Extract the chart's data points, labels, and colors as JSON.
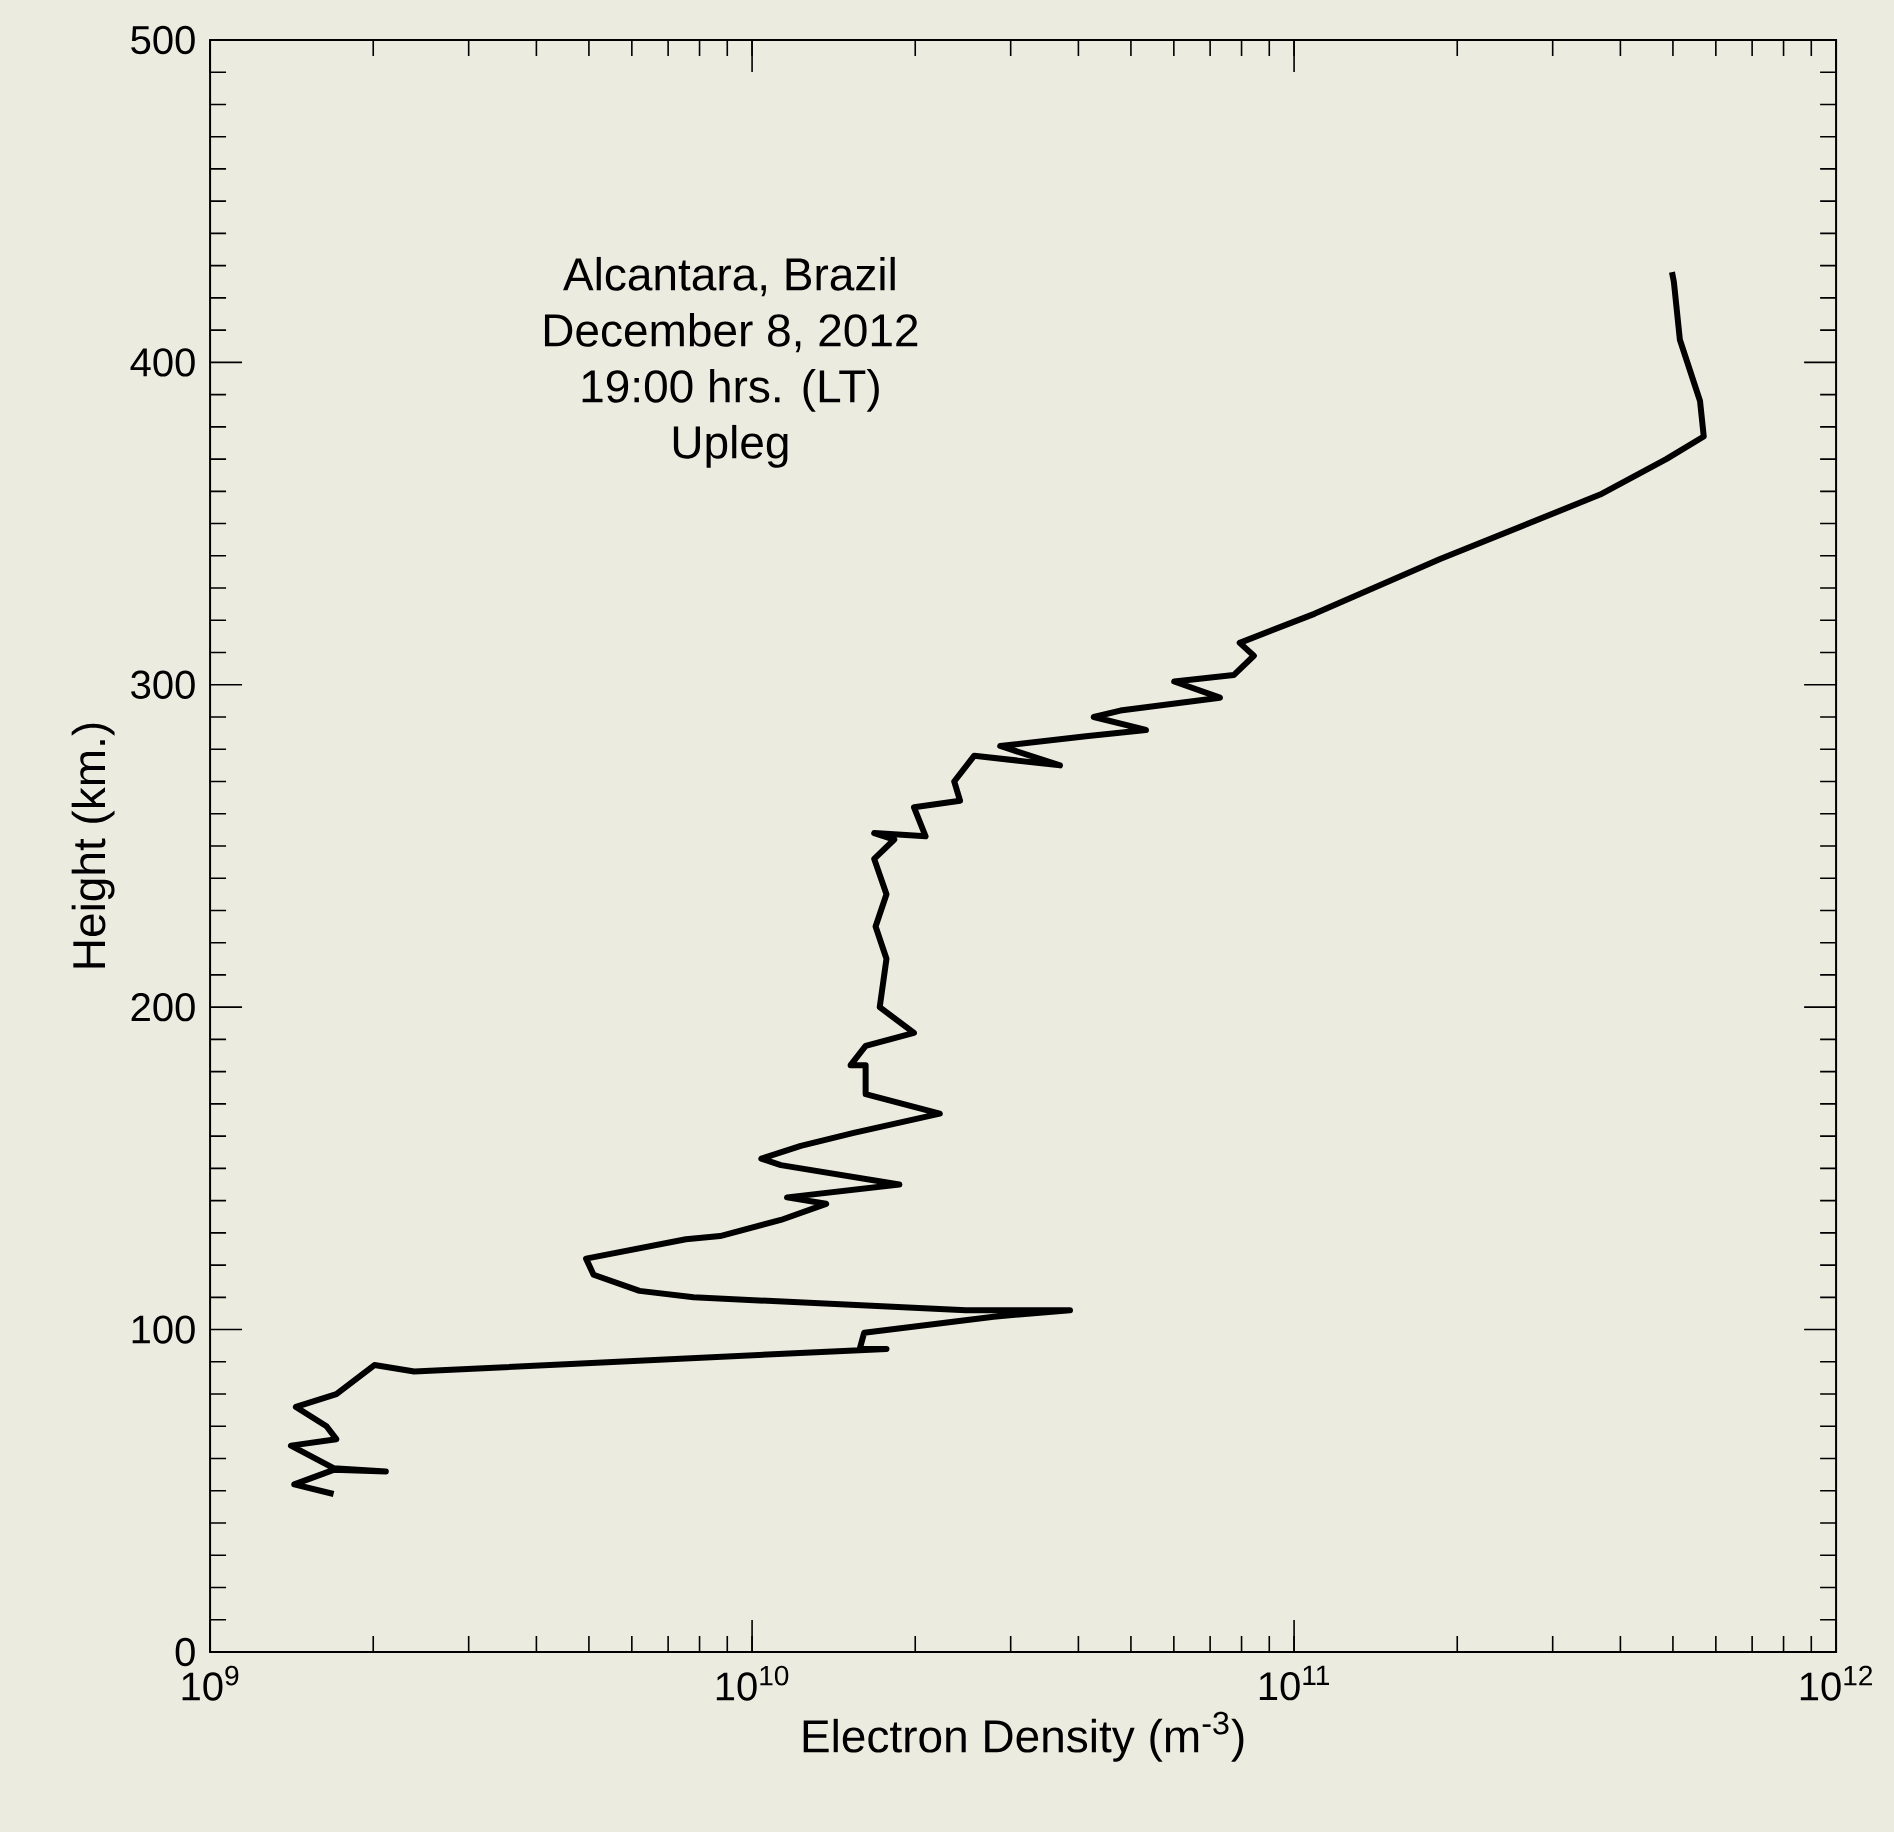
{
  "chart_data": {
    "type": "line",
    "xlabel": "Electron Density (m$^{-3}$)",
    "ylabel": "Height (km.)",
    "annotations": [
      "Alcantara, Brazil",
      "December 8, 2012",
      "19:00 hrs. (LT)",
      "Upleg"
    ],
    "log": "x",
    "color": "#000000",
    "x": [
      1690000000.0,
      1430000000.0,
      1690000000.0,
      2110000000.0,
      1690000000.0,
      1410000000.0,
      1710000000.0,
      1640000000.0,
      1440000000.0,
      1710000000.0,
      2010000000.0,
      2380000000.0,
      17700000000.0,
      15800000000.0,
      16100000000.0,
      27900000000.0,
      38600000000.0,
      24800000000.0,
      7800000000.0,
      6200000000.0,
      5100000000.0,
      4940000000.0,
      7550000000.0,
      8730000000.0,
      11300000000.0,
      13700000000.0,
      11600000000.0,
      18700000000.0,
      11300000000.0,
      10400000000.0,
      12300000000.0,
      15400000000.0,
      22200000000.0,
      16200000000.0,
      16200000000.0,
      15200000000.0,
      16200000000.0,
      19900000000.0,
      17200000000.0,
      17700000000.0,
      16900000000.0,
      17700000000.0,
      16800000000.0,
      18300000000.0,
      16800000000.0,
      20900000000.0,
      19900000000.0,
      24200000000.0,
      23600000000.0,
      25700000000.0,
      37000000000.0,
      28700000000.0,
      41300000000.0,
      53300000000.0,
      42700000000.0,
      47800000000.0,
      73000000000.0,
      60100000000.0,
      77400000000.0,
      84300000000.0,
      79400000000.0,
      109000000000.0,
      186000000000.0,
      367000000000.0,
      486000000000.0,
      570000000000.0,
      561000000000.0,
      515000000000.0,
      502000000000.0,
      498000000000.0
    ],
    "values": [
      49,
      52,
      56.5,
      56,
      57,
      64,
      66,
      70,
      76,
      80,
      89,
      87,
      94,
      94,
      99,
      104,
      106,
      106,
      110,
      112,
      117,
      122,
      128,
      129,
      134,
      139,
      141,
      145,
      151,
      153,
      157,
      161,
      167,
      173,
      182,
      182,
      188,
      192,
      200,
      215,
      225,
      235,
      246,
      252,
      254,
      253,
      262,
      264,
      270,
      278,
      275,
      281,
      284,
      286,
      290,
      292,
      296,
      301,
      303,
      309,
      313,
      322,
      339,
      359,
      370,
      377,
      388,
      407,
      425,
      428
    ],
    "xlim": [
      1000000000.0,
      1000000000000.0
    ],
    "ylim": [
      0,
      500
    ],
    "xticks": [
      {
        "value": 1000000000.0,
        "label": "10$^{9}$"
      },
      {
        "value": 10000000000.0,
        "label": "10$^{10}$"
      },
      {
        "value": 100000000000.0,
        "label": "10$^{11}$"
      },
      {
        "value": 1000000000000.0,
        "label": "10$^{12}$"
      }
    ],
    "yticks": [
      0,
      100,
      200,
      300,
      400,
      500
    ]
  }
}
